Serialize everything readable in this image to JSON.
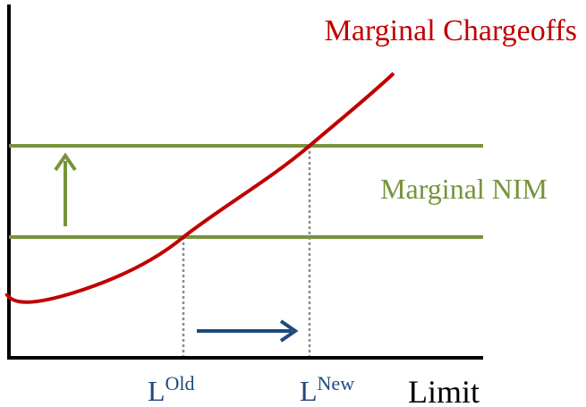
{
  "curve_label": "Marginal Chargeoffs",
  "line_label": "Marginal NIM",
  "markers": [
    {
      "base": "L",
      "superscript": "Old"
    },
    {
      "base": "L",
      "superscript": "New"
    }
  ],
  "x_axis_label": "Limit"
}
